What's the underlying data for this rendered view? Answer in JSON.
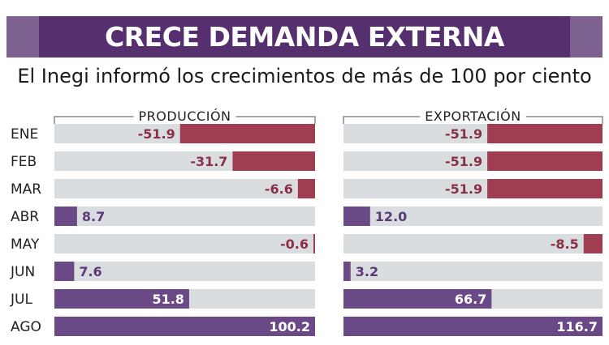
{
  "title": "CRECE DEMANDA EXTERNA",
  "subtitle": "El Inegi informó los crecimientos de más de 100 por ciento",
  "colors": {
    "banner": "#562f6e",
    "banner_tab": "#7d6190",
    "positive": "#6a4986",
    "negative": "#a03d52",
    "bar_background": "#d9dde0",
    "positive_label": "#5a3a78",
    "negative_label": "#8a3046"
  },
  "chart_data": {
    "type": "bar",
    "orientation": "horizontal",
    "categories": [
      "ENE",
      "FEB",
      "MAR",
      "ABR",
      "MAY",
      "JUN",
      "JUL",
      "AGO"
    ],
    "series": [
      {
        "name": "PRODUCCIÓN",
        "values": [
          -51.9,
          -31.7,
          -6.6,
          8.7,
          -0.6,
          7.6,
          51.8,
          100.2
        ]
      },
      {
        "name": "EXPORTACIÓN",
        "values": [
          -51.9,
          -51.9,
          -51.9,
          12.0,
          -8.5,
          3.2,
          66.7,
          116.7
        ]
      }
    ],
    "value_labels": {
      "PRODUCCIÓN": [
        "-51.9",
        "-31.7",
        "-6.6",
        "8.7",
        "-0.6",
        "7.6",
        "51.8",
        "100.2"
      ],
      "EXPORTACIÓN": [
        "-51.9",
        "-51.9",
        "-51.9",
        "12.0",
        "-8.5",
        "3.2",
        "66.7",
        "116.7"
      ]
    },
    "xlim": [
      -120,
      120
    ],
    "legend": "none"
  }
}
